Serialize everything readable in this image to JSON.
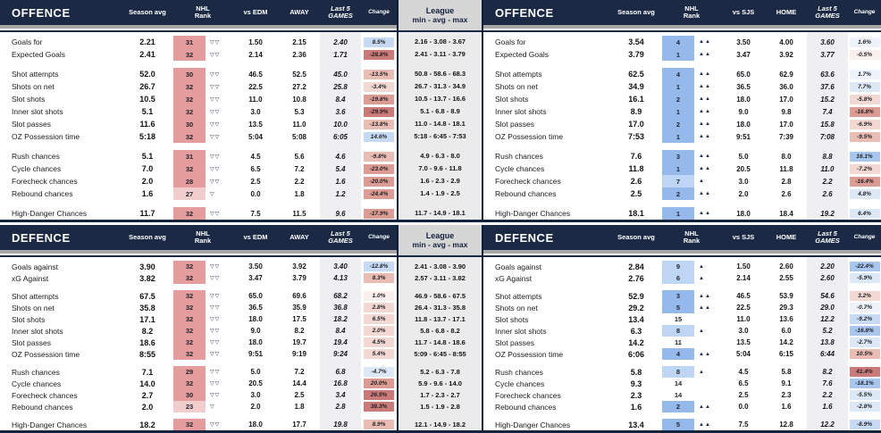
{
  "palette": {
    "navy": "#1b2944",
    "rank_red_strong": "#e49c9c",
    "rank_red_light": "#f2cdcd",
    "rank_blue_strong": "#96b9ec",
    "rank_blue_light": "#bfd5f4",
    "change_blue": [
      "#eef2fa",
      "#dde8f7",
      "#c7daf4",
      "#a9c6ee",
      "#8fb4e8"
    ],
    "change_red": [
      "#f9efec",
      "#f2d8d2",
      "#e9bcb4",
      "#dc9b93",
      "#ca7a78"
    ]
  },
  "league_header": {
    "line1": "League",
    "line2": "min - avg - max"
  },
  "sections": [
    {
      "name": "offence",
      "left": {
        "title": "OFFENCE",
        "rank_style": "red",
        "columns": {
          "avg": "Season avg",
          "rank": [
            "NHL",
            "Rank"
          ],
          "vs": "vs EDM",
          "venue": "AWAY",
          "last5": [
            "Last 5",
            "GAMES"
          ],
          "change": "Change"
        },
        "groups": [
          [
            {
              "label": "Goals for",
              "avg": "2.21",
              "rank": "31",
              "arrows": "▽▽",
              "vs": "1.50",
              "venue": "2.15",
              "last5": "2.40",
              "change": "8.5%"
            },
            {
              "label": "Expected Goals",
              "avg": "2.41",
              "rank": "32",
              "arrows": "▽▽",
              "vs": "2.14",
              "venue": "2.36",
              "last5": "1.71",
              "change": "-28.8%"
            }
          ],
          [
            {
              "label": "Shot attempts",
              "avg": "52.0",
              "rank": "30",
              "arrows": "▽▽",
              "vs": "46.5",
              "venue": "52.5",
              "last5": "45.0",
              "change": "-13.5%"
            },
            {
              "label": "Shots on net",
              "avg": "26.7",
              "rank": "32",
              "arrows": "▽▽",
              "vs": "22.5",
              "venue": "27.2",
              "last5": "25.8",
              "change": "-3.4%"
            },
            {
              "label": "Slot shots",
              "avg": "10.5",
              "rank": "32",
              "arrows": "▽▽",
              "vs": "11.0",
              "venue": "10.8",
              "last5": "8.4",
              "change": "-19.8%"
            },
            {
              "label": "Inner slot shots",
              "avg": "5.1",
              "rank": "32",
              "arrows": "▽▽",
              "vs": "3.0",
              "venue": "5.3",
              "last5": "3.6",
              "change": "-29.9%"
            },
            {
              "label": "Slot passes",
              "avg": "11.6",
              "rank": "30",
              "arrows": "▽▽",
              "vs": "13.5",
              "venue": "11.0",
              "last5": "10.0",
              "change": "-13.8%"
            },
            {
              "label": "OZ Possession time",
              "avg": "5:18",
              "rank": "32",
              "arrows": "▽▽",
              "vs": "5:04",
              "venue": "5:08",
              "last5": "6:05",
              "change": "14.6%"
            }
          ],
          [
            {
              "label": "Rush chances",
              "avg": "5.1",
              "rank": "31",
              "arrows": "▽▽",
              "vs": "4.5",
              "venue": "5.6",
              "last5": "4.6",
              "change": "-9.8%"
            },
            {
              "label": "Cycle chances",
              "avg": "7.0",
              "rank": "32",
              "arrows": "▽▽",
              "vs": "6.5",
              "venue": "7.2",
              "last5": "5.4",
              "change": "-23.0%"
            },
            {
              "label": "Forecheck chances",
              "avg": "2.0",
              "rank": "28",
              "arrows": "▽▽",
              "vs": "2.5",
              "venue": "2.2",
              "last5": "1.6",
              "change": "-20.0%"
            },
            {
              "label": "Rebound chances",
              "avg": "1.6",
              "rank": "27",
              "arrows": "▽",
              "vs": "0.0",
              "venue": "1.8",
              "last5": "1.2",
              "change": "-24.4%"
            }
          ],
          [
            {
              "label": "High-Danger Chances",
              "avg": "11.7",
              "rank": "32",
              "arrows": "▽▽",
              "vs": "7.5",
              "venue": "11.5",
              "last5": "9.6",
              "change": "-17.9%"
            }
          ]
        ]
      },
      "league": {
        "groups": [
          [
            "2.16 - 3.08 - 3.67",
            "2.41 - 3.11 - 3.79"
          ],
          [
            "50.8 - 58.6 - 68.3",
            "26.7 - 31.3 - 34.9",
            "10.5 - 13.7 - 16.6",
            "5.1 - 6.8 - 8.9",
            "11.0 - 14.8 - 18.1",
            "5:18 - 6:45 - 7:53"
          ],
          [
            "4.9 - 6.3 - 8.0",
            "7.0 - 9.6 - 11.8",
            "1.6 - 2.3 - 2.9",
            "1.4 - 1.9 - 2.5"
          ],
          [
            "11.7 - 14.9 - 18.1"
          ]
        ]
      },
      "right": {
        "title": "OFFENCE",
        "rank_style": "blue",
        "columns": {
          "avg": "Season avg",
          "rank": [
            "NHL",
            "Rank"
          ],
          "vs": "vs SJS",
          "venue": "HOME",
          "last5": [
            "Last 5",
            "GAMES"
          ],
          "change": "Change"
        },
        "groups": [
          [
            {
              "label": "Goals for",
              "avg": "3.54",
              "rank": "4",
              "arrows": "▲▲",
              "vs": "3.50",
              "venue": "4.00",
              "last5": "3.60",
              "change": "1.6%"
            },
            {
              "label": "Expected Goals",
              "avg": "3.79",
              "rank": "1",
              "arrows": "▲▲",
              "vs": "3.47",
              "venue": "3.92",
              "last5": "3.77",
              "change": "-0.5%"
            }
          ],
          [
            {
              "label": "Shot attempts",
              "avg": "62.5",
              "rank": "4",
              "arrows": "▲▲",
              "vs": "65.0",
              "venue": "62.9",
              "last5": "63.6",
              "change": "1.7%"
            },
            {
              "label": "Shots on net",
              "avg": "34.9",
              "rank": "1",
              "arrows": "▲▲",
              "vs": "36.5",
              "venue": "36.0",
              "last5": "37.6",
              "change": "7.7%"
            },
            {
              "label": "Slot shots",
              "avg": "16.1",
              "rank": "2",
              "arrows": "▲▲",
              "vs": "18.0",
              "venue": "17.0",
              "last5": "15.2",
              "change": "-5.8%"
            },
            {
              "label": "Inner slot shots",
              "avg": "8.9",
              "rank": "1",
              "arrows": "▲▲",
              "vs": "9.0",
              "venue": "9.8",
              "last5": "7.4",
              "change": "-16.8%"
            },
            {
              "label": "Slot passes",
              "avg": "17.0",
              "rank": "2",
              "arrows": "▲▲",
              "vs": "18.0",
              "venue": "17.0",
              "last5": "15.8",
              "change": "-6.9%"
            },
            {
              "label": "OZ Possession time",
              "avg": "7:53",
              "rank": "1",
              "arrows": "▲▲",
              "vs": "9:51",
              "venue": "7:39",
              "last5": "7:08",
              "change": "-9.5%"
            }
          ],
          [
            {
              "label": "Rush chances",
              "avg": "7.6",
              "rank": "3",
              "arrows": "▲▲",
              "vs": "5.0",
              "venue": "8.0",
              "last5": "8.8",
              "change": "16.1%"
            },
            {
              "label": "Cycle chances",
              "avg": "11.8",
              "rank": "1",
              "arrows": "▲▲",
              "vs": "20.5",
              "venue": "11.8",
              "last5": "11.0",
              "change": "-7.2%"
            },
            {
              "label": "Forecheck chances",
              "avg": "2.6",
              "rank": "7",
              "arrows": "▲",
              "vs": "3.0",
              "venue": "2.8",
              "last5": "2.2",
              "change": "-16.4%"
            },
            {
              "label": "Rebound chances",
              "avg": "2.5",
              "rank": "2",
              "arrows": "▲▲",
              "vs": "2.0",
              "venue": "2.6",
              "last5": "2.6",
              "change": "4.8%"
            }
          ],
          [
            {
              "label": "High-Danger Chances",
              "avg": "18.1",
              "rank": "1",
              "arrows": "▲▲",
              "vs": "18.0",
              "venue": "18.4",
              "last5": "19.2",
              "change": "6.4%"
            }
          ]
        ]
      }
    },
    {
      "name": "defence",
      "left": {
        "title": "DEFENCE",
        "rank_style": "red",
        "columns": {
          "avg": "Season avg",
          "rank": [
            "NHL",
            "Rank"
          ],
          "vs": "vs EDM",
          "venue": "AWAY",
          "last5": [
            "Last 5",
            "GAMES"
          ],
          "change": "Change"
        },
        "groups": [
          [
            {
              "label": "Goals against",
              "avg": "3.90",
              "rank": "32",
              "arrows": "▽▽",
              "vs": "3.50",
              "venue": "3.92",
              "last5": "3.40",
              "change": "-12.8%"
            },
            {
              "label": "xG Against",
              "avg": "3.82",
              "rank": "32",
              "arrows": "▽▽",
              "vs": "3.47",
              "venue": "3.79",
              "last5": "4.13",
              "change": "8.3%"
            }
          ],
          [
            {
              "label": "Shot attempts",
              "avg": "67.5",
              "rank": "32",
              "arrows": "▽▽",
              "vs": "65.0",
              "venue": "69.6",
              "last5": "68.2",
              "change": "1.0%"
            },
            {
              "label": "Shots on net",
              "avg": "35.8",
              "rank": "32",
              "arrows": "▽▽",
              "vs": "36.5",
              "venue": "35.9",
              "last5": "36.8",
              "change": "2.8%"
            },
            {
              "label": "Slot shots",
              "avg": "17.1",
              "rank": "32",
              "arrows": "▽▽",
              "vs": "18.0",
              "venue": "17.5",
              "last5": "18.2",
              "change": "6.5%"
            },
            {
              "label": "Inner slot shots",
              "avg": "8.2",
              "rank": "32",
              "arrows": "▽▽",
              "vs": "9.0",
              "venue": "8.2",
              "last5": "8.4",
              "change": "2.0%"
            },
            {
              "label": "Slot passes",
              "avg": "18.6",
              "rank": "32",
              "arrows": "▽▽",
              "vs": "18.0",
              "venue": "19.7",
              "last5": "19.4",
              "change": "4.5%"
            },
            {
              "label": "OZ Possession time",
              "avg": "8:55",
              "rank": "32",
              "arrows": "▽▽",
              "vs": "9:51",
              "venue": "9:19",
              "last5": "9:24",
              "change": "5.4%"
            }
          ],
          [
            {
              "label": "Rush chances",
              "avg": "7.1",
              "rank": "29",
              "arrows": "▽▽",
              "vs": "5.0",
              "venue": "7.2",
              "last5": "6.8",
              "change": "-4.7%"
            },
            {
              "label": "Cycle chances",
              "avg": "14.0",
              "rank": "32",
              "arrows": "▽▽",
              "vs": "20.5",
              "venue": "14.4",
              "last5": "16.8",
              "change": "20.0%"
            },
            {
              "label": "Forecheck chances",
              "avg": "2.7",
              "rank": "30",
              "arrows": "▽▽",
              "vs": "3.0",
              "venue": "2.5",
              "last5": "3.4",
              "change": "26.5%"
            },
            {
              "label": "Rebound chances",
              "avg": "2.0",
              "rank": "23",
              "arrows": "▽",
              "vs": "2.0",
              "venue": "1.8",
              "last5": "2.8",
              "change": "38.3%"
            }
          ],
          [
            {
              "label": "High-Danger Chances",
              "avg": "18.2",
              "rank": "32",
              "arrows": "▽▽",
              "vs": "18.0",
              "venue": "17.7",
              "last5": "19.8",
              "change": "8.9%"
            }
          ]
        ]
      },
      "league": {
        "groups": [
          [
            "2.41 - 3.08 - 3.90",
            "2.57 - 3.11 - 3.82"
          ],
          [
            "46.9 - 58.6 - 67.5",
            "26.4 - 31.3 - 35.8",
            "11.8 - 13.7 - 17.1",
            "5.8 - 6.8 - 8.2",
            "11.7 - 14.8 - 18.6",
            "5:09 - 6:45 - 8:55"
          ],
          [
            "5.2 - 6.3 - 7.8",
            "5.9 - 9.6 - 14.0",
            "1.7 - 2.3 - 2.7",
            "1.5 - 1.9 - 2.8"
          ],
          [
            "12.1 - 14.9 - 18.2"
          ]
        ]
      },
      "right": {
        "title": "DEFENCE",
        "rank_style": "blue",
        "columns": {
          "avg": "Season avg",
          "rank": [
            "NHL",
            "Rank"
          ],
          "vs": "vs SJS",
          "venue": "HOME",
          "last5": [
            "Last 5",
            "GAMES"
          ],
          "change": "Change"
        },
        "groups": [
          [
            {
              "label": "Goals against",
              "avg": "2.84",
              "rank": "9",
              "arrows": "▲",
              "vs": "1.50",
              "venue": "2.60",
              "last5": "2.20",
              "change": "-22.4%"
            },
            {
              "label": "xG Against",
              "avg": "2.76",
              "rank": "6",
              "arrows": "▲",
              "vs": "2.14",
              "venue": "2.55",
              "last5": "2.60",
              "change": "-5.9%"
            }
          ],
          [
            {
              "label": "Shot attempts",
              "avg": "52.9",
              "rank": "3",
              "arrows": "▲▲",
              "vs": "46.5",
              "venue": "53.9",
              "last5": "54.6",
              "change": "3.2%"
            },
            {
              "label": "Shots on net",
              "avg": "29.2",
              "rank": "5",
              "arrows": "▲▲",
              "vs": "22.5",
              "venue": "29.3",
              "last5": "29.0",
              "change": "-0.7%"
            },
            {
              "label": "Slot shots",
              "avg": "13.4",
              "rank": "15",
              "arrows": "",
              "vs": "11.0",
              "venue": "13.6",
              "last5": "12.2",
              "change": "-9.2%"
            },
            {
              "label": "Inner slot shots",
              "avg": "6.3",
              "rank": "8",
              "arrows": "▲",
              "vs": "3.0",
              "venue": "6.0",
              "last5": "5.2",
              "change": "-16.8%"
            },
            {
              "label": "Slot passes",
              "avg": "14.2",
              "rank": "11",
              "arrows": "",
              "vs": "13.5",
              "venue": "14.2",
              "last5": "13.8",
              "change": "-2.7%"
            },
            {
              "label": "OZ Possession time",
              "avg": "6:06",
              "rank": "4",
              "arrows": "▲▲",
              "vs": "5:04",
              "venue": "6:15",
              "last5": "6:44",
              "change": "10.5%"
            }
          ],
          [
            {
              "label": "Rush chances",
              "avg": "5.8",
              "rank": "8",
              "arrows": "▲",
              "vs": "4.5",
              "venue": "5.8",
              "last5": "8.2",
              "change": "41.4%"
            },
            {
              "label": "Cycle chances",
              "avg": "9.3",
              "rank": "14",
              "arrows": "",
              "vs": "6.5",
              "venue": "9.1",
              "last5": "7.6",
              "change": "-18.1%"
            },
            {
              "label": "Forecheck chances",
              "avg": "2.3",
              "rank": "14",
              "arrows": "",
              "vs": "2.5",
              "venue": "2.3",
              "last5": "2.2",
              "change": "-5.5%"
            },
            {
              "label": "Rebound chances",
              "avg": "1.6",
              "rank": "2",
              "arrows": "▲▲",
              "vs": "0.0",
              "venue": "1.6",
              "last5": "1.6",
              "change": "-2.8%"
            }
          ],
          [
            {
              "label": "High-Danger Chances",
              "avg": "13.4",
              "rank": "5",
              "arrows": "▲▲",
              "vs": "7.5",
              "venue": "12.8",
              "last5": "12.2",
              "change": "-8.9%"
            }
          ]
        ]
      }
    }
  ]
}
